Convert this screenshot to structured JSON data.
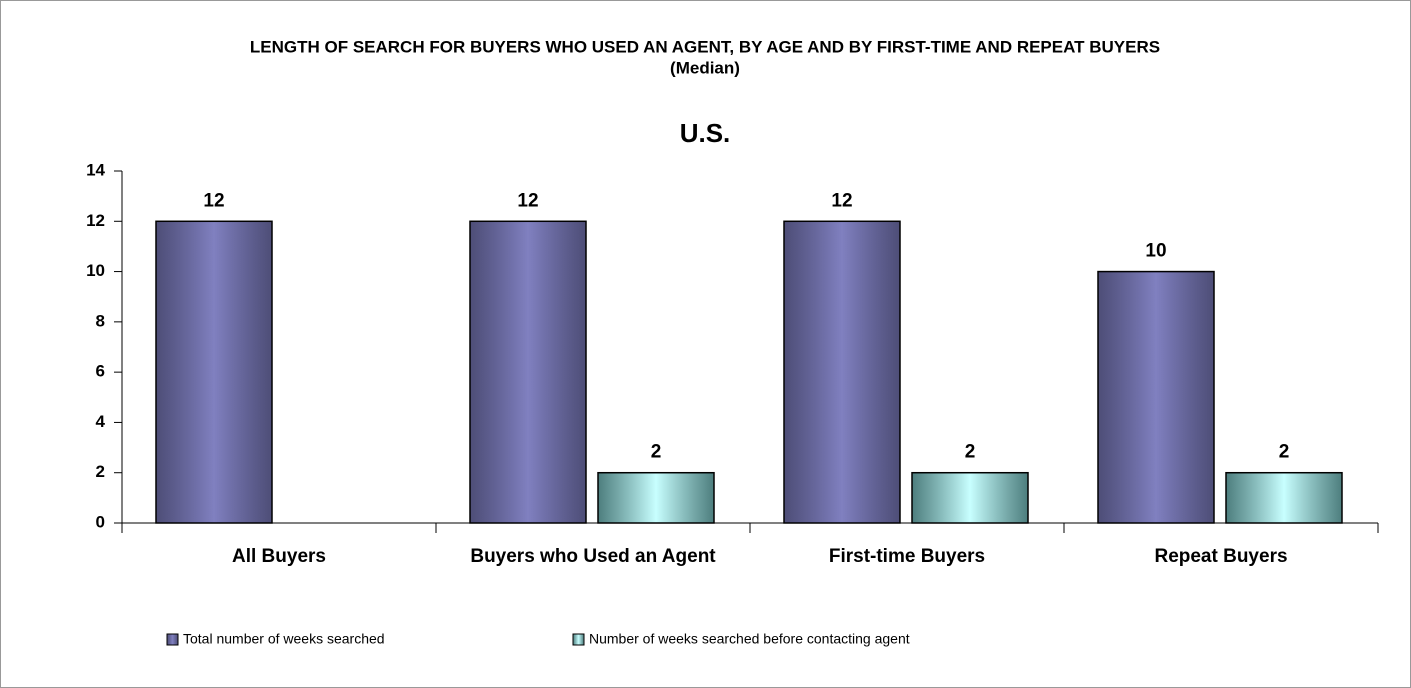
{
  "chart_data": {
    "type": "bar",
    "title": "LENGTH OF SEARCH FOR BUYERS WHO USED AN AGENT, BY AGE AND BY FIRST-TIME AND REPEAT BUYERS",
    "subtitle": "(Median)",
    "heading": "U.S.",
    "categories": [
      "All Buyers",
      "Buyers who Used an Agent",
      "First-time Buyers",
      "Repeat Buyers"
    ],
    "series": [
      {
        "name": "Total number of weeks searched",
        "color": "#8080c0",
        "values": [
          12,
          12,
          12,
          10
        ]
      },
      {
        "name": "Number of weeks searched before contacting agent",
        "color": "#c8ffff",
        "values": [
          null,
          2,
          2,
          2
        ]
      }
    ],
    "ylim": [
      0,
      14
    ],
    "yticks": [
      0,
      2,
      4,
      6,
      8,
      10,
      12,
      14
    ],
    "legend": "bottom"
  }
}
